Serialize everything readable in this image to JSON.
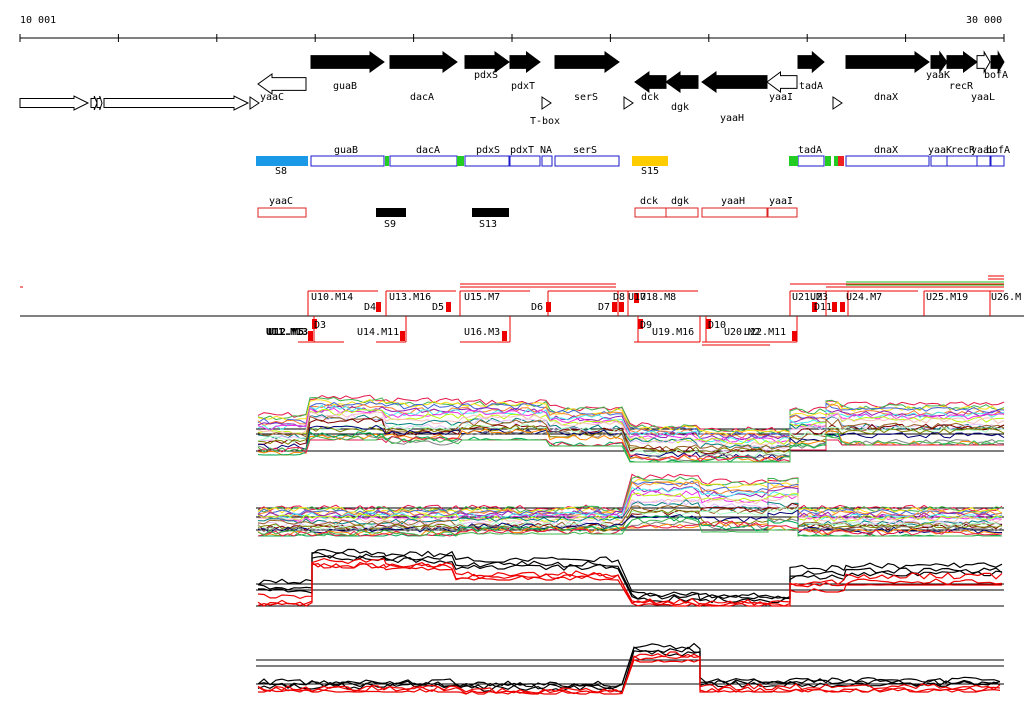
{
  "ruler": {
    "start_label": "10 001",
    "end_label": "30 000"
  },
  "genes": [
    {
      "name": "yaaC",
      "dir": "rev",
      "style": "open"
    },
    {
      "name": "guaB",
      "dir": "fwd",
      "style": "solid"
    },
    {
      "name": "dacA",
      "dir": "fwd",
      "style": "solid"
    },
    {
      "name": "pdxS",
      "dir": "fwd",
      "style": "solid"
    },
    {
      "name": "pdxT",
      "dir": "fwd",
      "style": "solid"
    },
    {
      "name": "serS",
      "dir": "fwd",
      "style": "solid"
    },
    {
      "name": "dck",
      "dir": "rev",
      "style": "solid"
    },
    {
      "name": "dgk",
      "dir": "rev",
      "style": "solid"
    },
    {
      "name": "yaaH",
      "dir": "rev",
      "style": "solid"
    },
    {
      "name": "yaaI",
      "dir": "rev",
      "style": "open"
    },
    {
      "name": "tadA",
      "dir": "fwd",
      "style": "solid"
    },
    {
      "name": "dnaX",
      "dir": "fwd",
      "style": "solid"
    },
    {
      "name": "yaaK",
      "dir": "fwd",
      "style": "solid"
    },
    {
      "name": "recR",
      "dir": "fwd",
      "style": "solid"
    },
    {
      "name": "yaaL",
      "dir": "fwd",
      "style": "open"
    },
    {
      "name": "bofA",
      "dir": "fwd",
      "style": "solid"
    }
  ],
  "elements": [
    {
      "name": "T-box"
    }
  ],
  "blue_boxes": [
    {
      "label": "guaB"
    },
    {
      "label": "dacA"
    },
    {
      "label": "pdxS"
    },
    {
      "label": "pdxT"
    },
    {
      "label": "NA"
    },
    {
      "label": "serS"
    },
    {
      "label": "tadA"
    },
    {
      "label": "dnaX"
    },
    {
      "label": "yaaK"
    },
    {
      "label": "recR"
    },
    {
      "label": "yaaL"
    },
    {
      "label": "bofA"
    }
  ],
  "sigma_boxes": [
    {
      "label": "S8",
      "color": "#1a9ae6"
    },
    {
      "label": "S15",
      "color": "#ffcc00"
    },
    {
      "label": "S9",
      "color": "#000000"
    },
    {
      "label": "S13",
      "color": "#000000"
    }
  ],
  "red_boxes": [
    {
      "label": "yaaC"
    },
    {
      "label": "dck"
    },
    {
      "label": "dgk"
    },
    {
      "label": "yaaH"
    },
    {
      "label": "yaaI"
    }
  ],
  "segments_top": [
    {
      "label": "U10.M14"
    },
    {
      "label": "D4"
    },
    {
      "label": "U13.M16"
    },
    {
      "label": "D5"
    },
    {
      "label": "U15.M7"
    },
    {
      "label": "D6"
    },
    {
      "label": "D7"
    },
    {
      "label": "D8"
    },
    {
      "label": "U17"
    },
    {
      "label": "U18.M8"
    },
    {
      "label": "U21.M"
    },
    {
      "label": "U23"
    },
    {
      "label": "D11"
    },
    {
      "label": "U24.M7"
    },
    {
      "label": "U25.M19"
    },
    {
      "label": "U26.M"
    }
  ],
  "segments_bottom": [
    {
      "label": "U11.M13"
    },
    {
      "label": "U12.M5"
    },
    {
      "label": "D3"
    },
    {
      "label": "U14.M11"
    },
    {
      "label": "U16.M3"
    },
    {
      "label": "D9"
    },
    {
      "label": "U19.M16"
    },
    {
      "label": "D10"
    },
    {
      "label": "U20.M2"
    },
    {
      "label": "U22.M11"
    }
  ],
  "colors": {
    "gene_fill": "#000000",
    "blue_outline": "#1a1acc",
    "red_outline": "#dd2222",
    "segment_red": "#ee0000",
    "green_line": "#22bb22",
    "black_line": "#000000"
  }
}
